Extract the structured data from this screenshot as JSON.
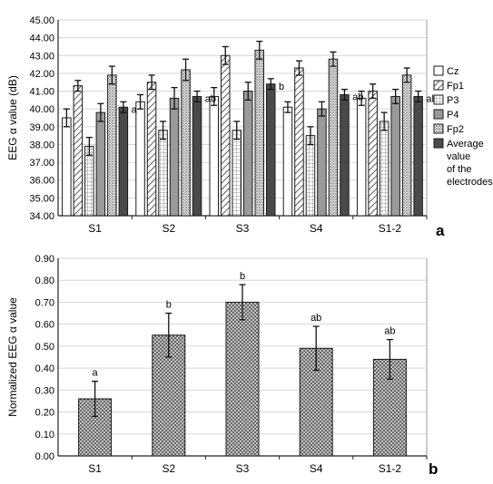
{
  "chart_data": [
    {
      "type": "bar",
      "panel_label": "a",
      "ylabel": "EEG α value (dB)",
      "xlabel": "",
      "ylim": [
        34.0,
        45.0
      ],
      "y_ticks": [
        "34.00",
        "35.00",
        "36.00",
        "37.00",
        "38.00",
        "39.00",
        "40.00",
        "41.00",
        "42.00",
        "43.00",
        "44.00",
        "45.00"
      ],
      "categories": [
        "S1",
        "S2",
        "S3",
        "S4",
        "S1-2"
      ],
      "grid": true,
      "legend_position": "right",
      "series": [
        {
          "name": "Cz",
          "values": [
            39.5,
            40.4,
            40.7,
            40.1,
            40.6
          ],
          "errors": [
            0.5,
            0.4,
            0.5,
            0.3,
            0.4
          ],
          "pattern": "white"
        },
        {
          "name": "Fp1",
          "values": [
            41.3,
            41.5,
            43.0,
            42.3,
            41.0
          ],
          "errors": [
            0.3,
            0.4,
            0.5,
            0.4,
            0.4
          ],
          "pattern": "diagonal"
        },
        {
          "name": "P3",
          "values": [
            37.9,
            38.8,
            38.8,
            38.5,
            39.3
          ],
          "errors": [
            0.5,
            0.5,
            0.5,
            0.5,
            0.5
          ],
          "pattern": "grid"
        },
        {
          "name": "P4",
          "values": [
            39.8,
            40.6,
            41.0,
            40.0,
            40.7
          ],
          "errors": [
            0.5,
            0.6,
            0.5,
            0.4,
            0.4
          ],
          "pattern": "gray"
        },
        {
          "name": "Fp2",
          "values": [
            41.9,
            42.2,
            43.3,
            42.8,
            41.9
          ],
          "errors": [
            0.5,
            0.6,
            0.5,
            0.4,
            0.4
          ],
          "pattern": "dots"
        },
        {
          "name": "Average value of the electrodes",
          "legend_lines": [
            "Average",
            "value",
            "of the",
            "electrodes"
          ],
          "values": [
            40.1,
            40.7,
            41.4,
            40.8,
            40.7
          ],
          "errors": [
            0.3,
            0.3,
            0.3,
            0.3,
            0.3
          ],
          "pattern": "dark"
        }
      ],
      "annotations": [
        "a",
        "ab",
        "b",
        "ab",
        "ab"
      ]
    },
    {
      "type": "bar",
      "panel_label": "b",
      "ylabel": "Normalized EEG α value",
      "xlabel": "",
      "ylim": [
        0.0,
        0.9
      ],
      "y_ticks": [
        "0.00",
        "0.10",
        "0.20",
        "0.30",
        "0.40",
        "0.50",
        "0.60",
        "0.70",
        "0.80",
        "0.90"
      ],
      "categories": [
        "S1",
        "S2",
        "S3",
        "S4",
        "S1-2"
      ],
      "grid": true,
      "series": [
        {
          "values": [
            0.26,
            0.55,
            0.7,
            0.49,
            0.44
          ],
          "errors": [
            0.08,
            0.1,
            0.08,
            0.1,
            0.09
          ],
          "pattern": "dots"
        }
      ],
      "annotations": [
        "a",
        "b",
        "b",
        "ab",
        "ab"
      ]
    }
  ],
  "colors": {
    "axis": "#222222",
    "grid": "#d6d6d6",
    "bar_stroke": "#1a1a1a",
    "gray_fill": "#9a9a9a",
    "dark_fill": "#4a4a4a",
    "white_fill": "#ffffff"
  }
}
